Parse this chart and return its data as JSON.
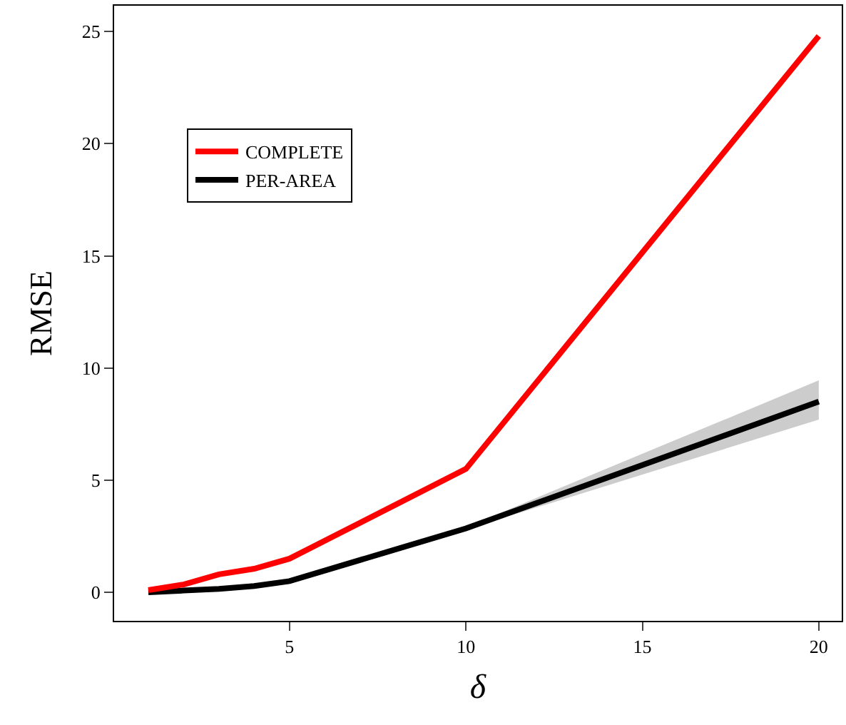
{
  "chart_data": {
    "type": "line",
    "xlabel": "δ",
    "ylabel": "RMSE",
    "x": [
      1,
      2,
      3,
      4,
      5,
      10,
      20
    ],
    "series": [
      {
        "name": "PER-AREA",
        "color": "#000000",
        "values": [
          0,
          0.08,
          0.15,
          0.28,
          0.5,
          2.85,
          8.5
        ],
        "lower": [
          0,
          0.08,
          0.15,
          0.28,
          0.5,
          2.8,
          7.7
        ],
        "upper": [
          0,
          0.08,
          0.15,
          0.28,
          0.5,
          2.9,
          9.45
        ]
      },
      {
        "name": "COMPLETE",
        "color": "#ff0000",
        "values": [
          0.1,
          0.35,
          0.8,
          1.05,
          1.5,
          5.5,
          24.8
        ]
      }
    ],
    "xlim": [
      0.03,
      20.65
    ],
    "ylim": [
      -1.27,
      26.15
    ],
    "xticks": [
      5,
      10,
      15,
      20
    ],
    "yticks": [
      0,
      5,
      10,
      15,
      20,
      25
    ],
    "grid": false,
    "legend": "top left",
    "marker": "none",
    "line_style": "solid"
  }
}
